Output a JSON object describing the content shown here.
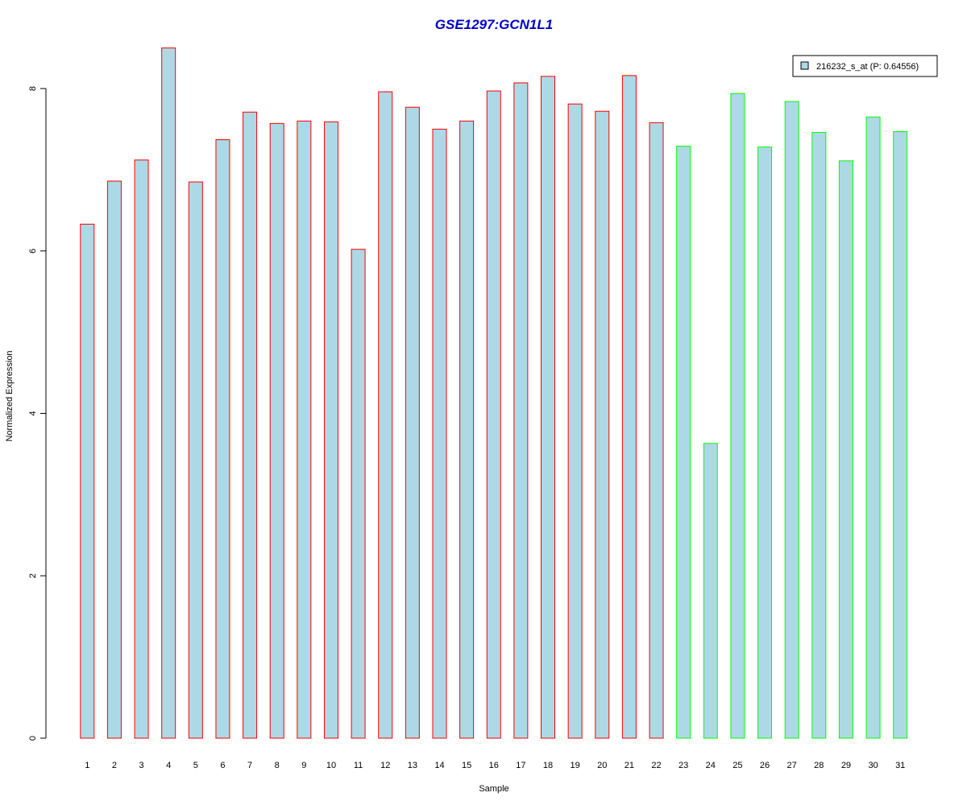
{
  "chart_data": {
    "type": "bar",
    "title": "GSE1297:GCN1L1",
    "xlabel": "Sample",
    "ylabel": "Normalized Expression",
    "ylim": [
      0,
      8.5
    ],
    "yticks": [
      "0",
      "2",
      "4",
      "6",
      "8"
    ],
    "grid": false,
    "legend_position": "top-right",
    "categories": [
      "1",
      "2",
      "3",
      "4",
      "5",
      "6",
      "7",
      "8",
      "9",
      "10",
      "11",
      "12",
      "13",
      "14",
      "15",
      "16",
      "17",
      "18",
      "19",
      "20",
      "21",
      "22",
      "23",
      "24",
      "25",
      "26",
      "27",
      "28",
      "29",
      "30",
      "31"
    ],
    "series": [
      {
        "name": "216232_s_at (P: 0.64556)",
        "values": [
          6.33,
          6.86,
          7.12,
          8.5,
          6.85,
          7.37,
          7.71,
          7.57,
          7.6,
          7.59,
          6.02,
          7.96,
          7.77,
          7.5,
          7.6,
          7.97,
          8.07,
          8.15,
          7.81,
          7.72,
          8.16,
          7.58,
          7.29,
          3.63,
          7.94,
          7.28,
          7.84,
          7.46,
          7.11,
          7.65,
          7.47
        ]
      }
    ],
    "group_of_bar": [
      1,
      1,
      1,
      1,
      1,
      1,
      1,
      1,
      1,
      1,
      1,
      1,
      1,
      1,
      1,
      1,
      1,
      1,
      1,
      1,
      1,
      1,
      2,
      2,
      2,
      2,
      2,
      2,
      2,
      2,
      2
    ]
  },
  "colors": {
    "title": "#0000cd",
    "bar_fill": "#add8e6",
    "group_1_border": "#ff0000",
    "group_2_border": "#00ff00",
    "axis": "#000000"
  }
}
